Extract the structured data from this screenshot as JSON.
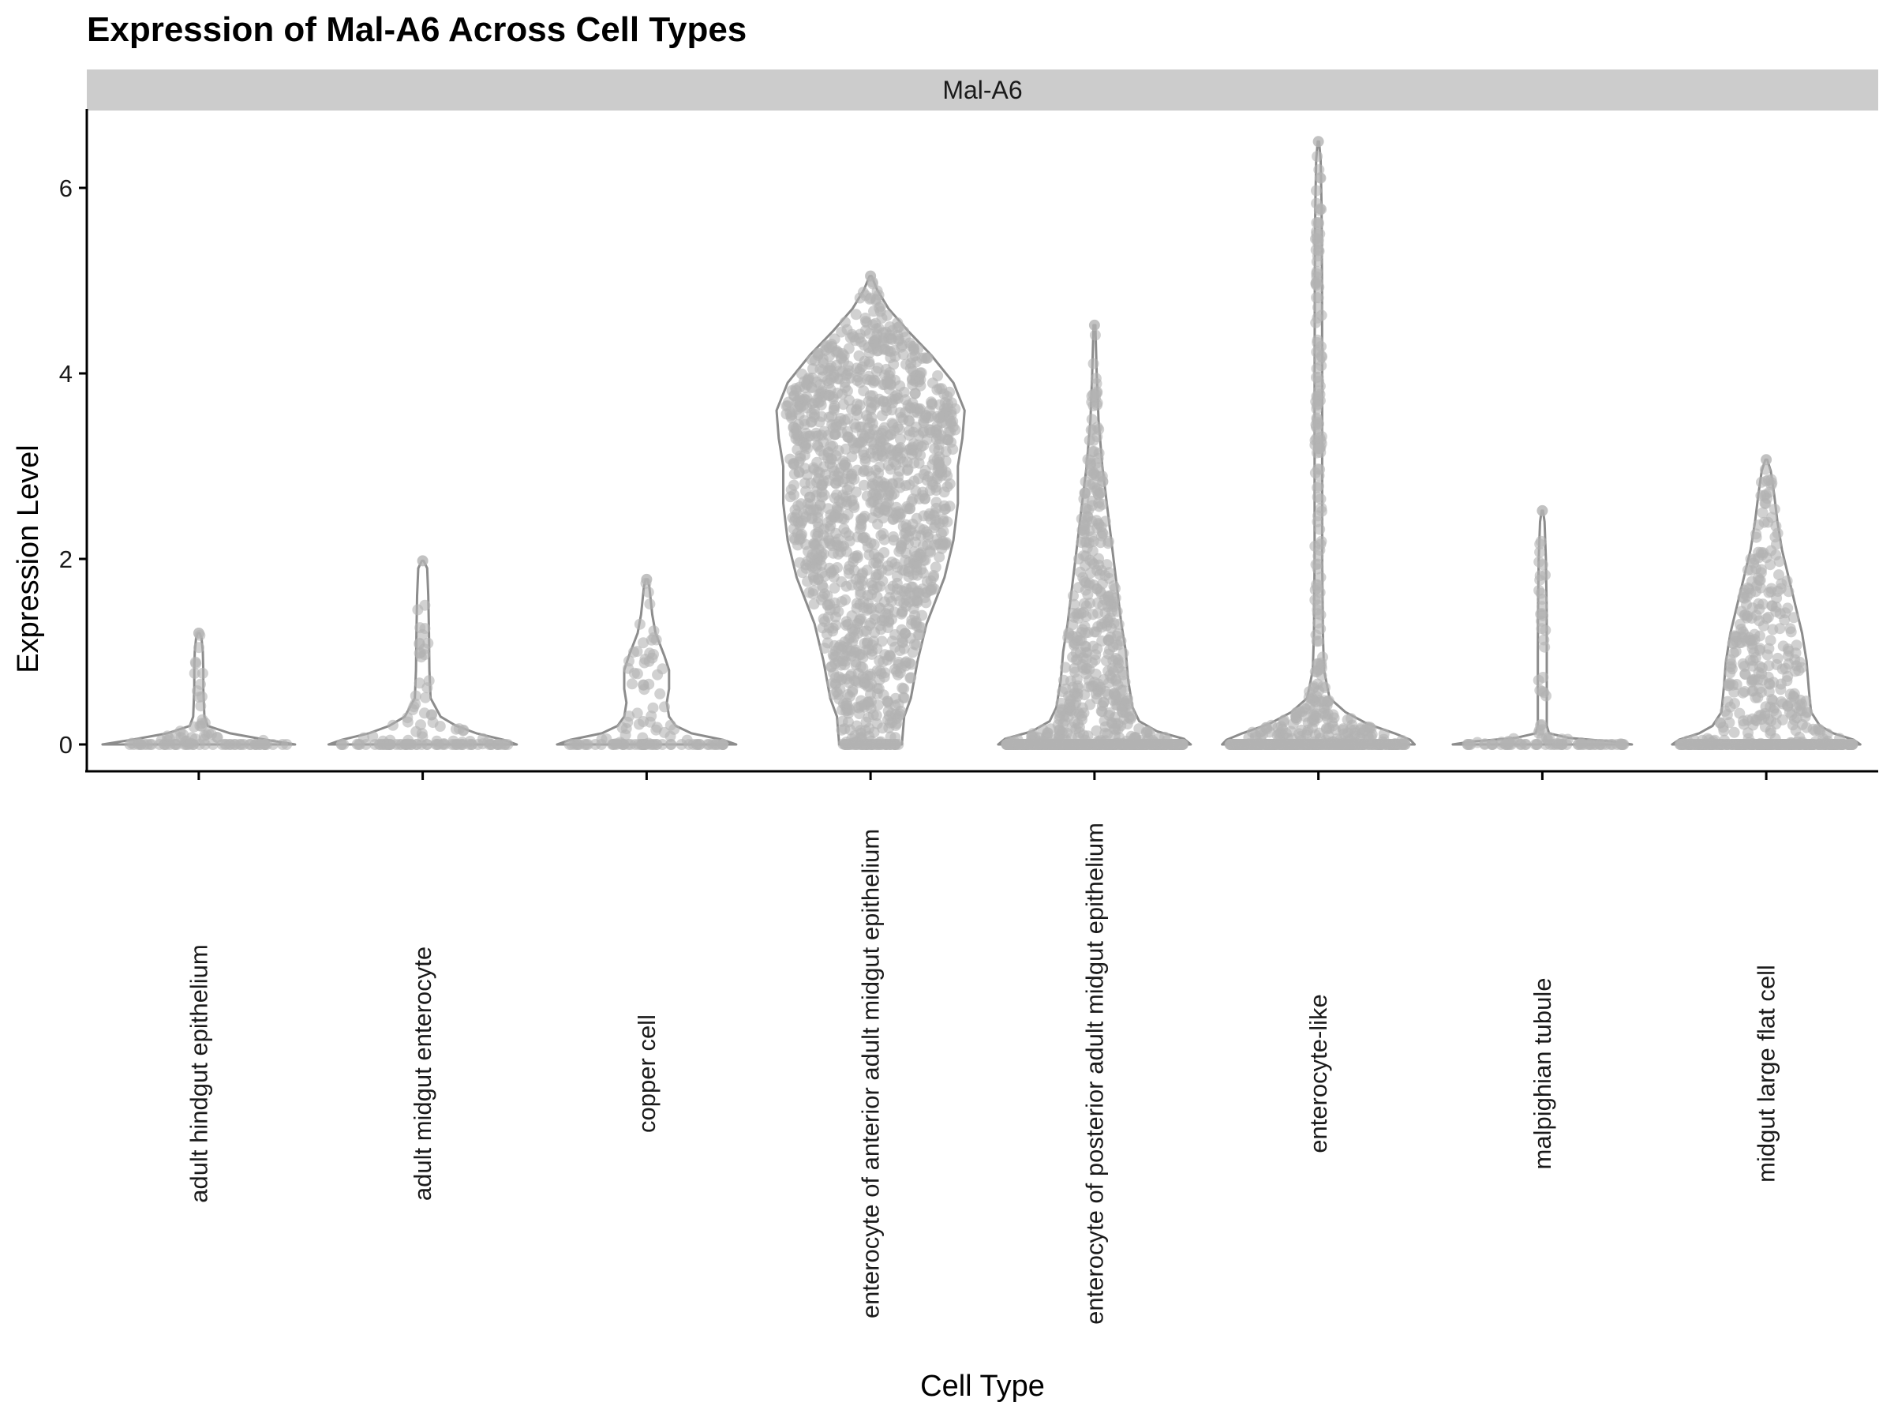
{
  "chart_data": {
    "type": "violin",
    "title": "Expression of Mal-A6 Across Cell Types",
    "facet_label": "Mal-A6",
    "xlabel": "Cell Type",
    "ylabel": "Expression Level",
    "ylim": [
      -0.3,
      6.8
    ],
    "yticks": [
      0,
      2,
      4,
      6
    ],
    "grid": false,
    "legend": "none",
    "colors": {
      "fill": "#ffffff",
      "outline": "#8c8c8c",
      "points": "#b3b3b3",
      "strip": "#cccccc",
      "axis": "#000000"
    },
    "categories": [
      "adult hindgut epithelium",
      "adult midgut enterocyte",
      "copper cell",
      "enterocyte of anterior adult midgut epithelium",
      "enterocyte of posterior adult midgut epithelium",
      "enterocyte-like",
      "malpighian tubule",
      "midgut large flat cell"
    ],
    "series": [
      {
        "category": "adult hindgut epithelium",
        "max": 1.2,
        "n_points": 90,
        "profile": [
          [
            0,
            0.43
          ],
          [
            0.05,
            0.3
          ],
          [
            0.12,
            0.14
          ],
          [
            0.2,
            0.04
          ],
          [
            0.3,
            0.025
          ],
          [
            0.6,
            0.02
          ],
          [
            0.8,
            0.02
          ],
          [
            1.0,
            0.018
          ],
          [
            1.15,
            0.012
          ],
          [
            1.2,
            0.004
          ]
        ]
      },
      {
        "category": "adult midgut enterocyte",
        "max": 1.98,
        "n_points": 110,
        "profile": [
          [
            0,
            0.42
          ],
          [
            0.05,
            0.36
          ],
          [
            0.12,
            0.24
          ],
          [
            0.2,
            0.15
          ],
          [
            0.3,
            0.08
          ],
          [
            0.5,
            0.035
          ],
          [
            0.8,
            0.03
          ],
          [
            1.2,
            0.028
          ],
          [
            1.6,
            0.025
          ],
          [
            1.9,
            0.02
          ],
          [
            1.98,
            0.004
          ]
        ]
      },
      {
        "category": "copper cell",
        "max": 1.78,
        "n_points": 110,
        "profile": [
          [
            0,
            0.4
          ],
          [
            0.05,
            0.34
          ],
          [
            0.12,
            0.2
          ],
          [
            0.2,
            0.13
          ],
          [
            0.3,
            0.1
          ],
          [
            0.45,
            0.09
          ],
          [
            0.6,
            0.1
          ],
          [
            0.8,
            0.1
          ],
          [
            0.95,
            0.08
          ],
          [
            1.2,
            0.04
          ],
          [
            1.4,
            0.025
          ],
          [
            1.7,
            0.012
          ],
          [
            1.78,
            0.004
          ]
        ]
      },
      {
        "category": "enterocyte of anterior adult midgut epithelium",
        "max": 5.05,
        "n_points": 1400,
        "profile": [
          [
            0,
            0.14
          ],
          [
            0.3,
            0.15
          ],
          [
            0.5,
            0.18
          ],
          [
            0.9,
            0.21
          ],
          [
            1.3,
            0.25
          ],
          [
            1.8,
            0.33
          ],
          [
            2.2,
            0.37
          ],
          [
            2.6,
            0.39
          ],
          [
            3.0,
            0.39
          ],
          [
            3.3,
            0.41
          ],
          [
            3.6,
            0.42
          ],
          [
            3.9,
            0.37
          ],
          [
            4.2,
            0.27
          ],
          [
            4.45,
            0.17
          ],
          [
            4.7,
            0.08
          ],
          [
            4.9,
            0.03
          ],
          [
            5.05,
            0.004
          ]
        ]
      },
      {
        "category": "enterocyte of posterior adult midgut epithelium",
        "max": 4.52,
        "n_points": 900,
        "profile": [
          [
            0,
            0.43
          ],
          [
            0.06,
            0.4
          ],
          [
            0.14,
            0.28
          ],
          [
            0.25,
            0.2
          ],
          [
            0.4,
            0.17
          ],
          [
            0.7,
            0.15
          ],
          [
            1.0,
            0.14
          ],
          [
            1.3,
            0.12
          ],
          [
            1.7,
            0.1
          ],
          [
            2.1,
            0.08
          ],
          [
            2.5,
            0.06
          ],
          [
            3.0,
            0.035
          ],
          [
            3.5,
            0.018
          ],
          [
            4.0,
            0.01
          ],
          [
            4.52,
            0.004
          ]
        ]
      },
      {
        "category": "enterocyte-like",
        "max": 6.5,
        "n_points": 600,
        "profile": [
          [
            0,
            0.43
          ],
          [
            0.05,
            0.41
          ],
          [
            0.12,
            0.34
          ],
          [
            0.22,
            0.22
          ],
          [
            0.35,
            0.12
          ],
          [
            0.5,
            0.05
          ],
          [
            0.8,
            0.025
          ],
          [
            1.2,
            0.02
          ],
          [
            2.0,
            0.017
          ],
          [
            3.0,
            0.017
          ],
          [
            4.0,
            0.017
          ],
          [
            5.0,
            0.016
          ],
          [
            5.8,
            0.014
          ],
          [
            6.3,
            0.01
          ],
          [
            6.5,
            0.003
          ]
        ]
      },
      {
        "category": "malpighian tubule",
        "max": 2.52,
        "n_points": 100,
        "profile": [
          [
            0,
            0.4
          ],
          [
            0.03,
            0.32
          ],
          [
            0.07,
            0.12
          ],
          [
            0.12,
            0.03
          ],
          [
            0.2,
            0.02
          ],
          [
            0.5,
            0.02
          ],
          [
            1.0,
            0.02
          ],
          [
            1.5,
            0.019
          ],
          [
            2.0,
            0.016
          ],
          [
            2.4,
            0.01
          ],
          [
            2.52,
            0.003
          ]
        ]
      },
      {
        "category": "midgut large flat cell",
        "max": 3.07,
        "n_points": 600,
        "profile": [
          [
            0,
            0.42
          ],
          [
            0.05,
            0.39
          ],
          [
            0.12,
            0.3
          ],
          [
            0.2,
            0.24
          ],
          [
            0.35,
            0.2
          ],
          [
            0.6,
            0.19
          ],
          [
            0.9,
            0.18
          ],
          [
            1.2,
            0.16
          ],
          [
            1.5,
            0.13
          ],
          [
            1.8,
            0.1
          ],
          [
            2.1,
            0.07
          ],
          [
            2.4,
            0.05
          ],
          [
            2.7,
            0.035
          ],
          [
            2.95,
            0.02
          ],
          [
            3.07,
            0.004
          ]
        ]
      }
    ]
  }
}
